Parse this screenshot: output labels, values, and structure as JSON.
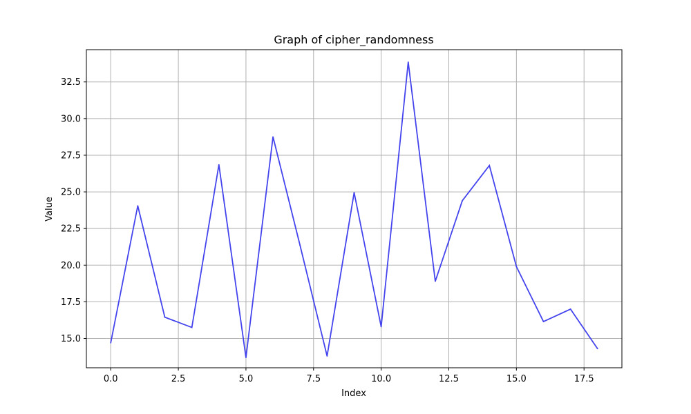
{
  "chart_data": {
    "type": "line",
    "title": "Graph of cipher_randomness",
    "xlabel": "Index",
    "ylabel": "Value",
    "xlim": [
      -0.9,
      18.9
    ],
    "ylim": [
      13.0,
      34.7
    ],
    "x_ticks": [
      0.0,
      2.5,
      5.0,
      7.5,
      10.0,
      12.5,
      15.0,
      17.5
    ],
    "x_tick_labels": [
      "0.0",
      "2.5",
      "5.0",
      "7.5",
      "10.0",
      "12.5",
      "15.0",
      "17.5"
    ],
    "y_ticks": [
      15.0,
      17.5,
      20.0,
      22.5,
      25.0,
      27.5,
      30.0,
      32.5
    ],
    "y_tick_labels": [
      "15.0",
      "17.5",
      "20.0",
      "22.5",
      "25.0",
      "27.5",
      "30.0",
      "32.5"
    ],
    "grid": true,
    "series": [
      {
        "color": "#4444ee",
        "x": [
          0,
          1,
          2,
          3,
          4,
          5,
          6,
          7,
          8,
          9,
          10,
          11,
          12,
          13,
          14,
          15,
          16,
          17,
          18
        ],
        "values": [
          14.7,
          24.05,
          16.45,
          15.75,
          26.85,
          13.7,
          28.75,
          21.35,
          13.8,
          24.95,
          15.8,
          33.85,
          18.9,
          24.4,
          26.8,
          19.9,
          16.15,
          17.0,
          14.3
        ]
      }
    ]
  }
}
